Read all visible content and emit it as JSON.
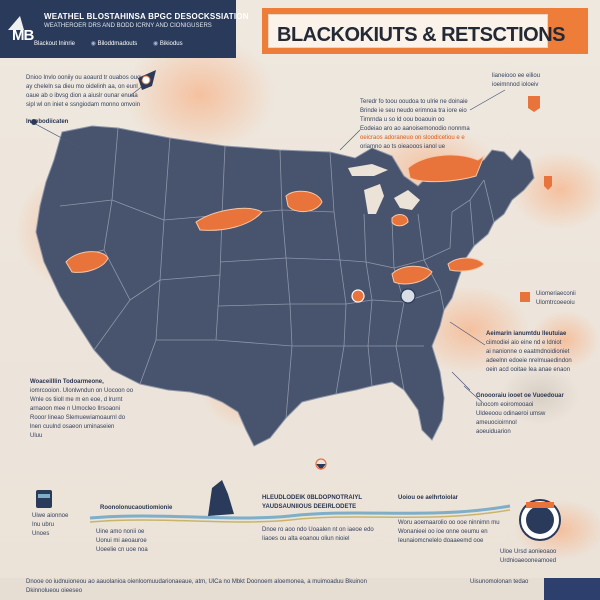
{
  "header": {
    "logo_text": "MB",
    "title": "WEATHEL BLOSTAHINSA BPGC DESOCKSSIATION",
    "subtitle": "WEATHEROER DRS AND BODD ICRNY AND CIONIGUSERS",
    "links": [
      "Blackout Ininrie",
      "Biloddmadouts",
      "Bikiodus"
    ]
  },
  "banner": {
    "title": "BLACKOKIUTS &  RETSCTIONS"
  },
  "notes": {
    "top_left": [
      "Dnioo Invlo ooniiy ou aoaurd tr ouabos ouoy",
      "ay cheleln sa dieu mo oidelinh aa, on eunl",
      "oaue ab o ibvsg dion a aiuslr ounar enuaa",
      "sipl wl on iniet e ssngiodam monno omvoin"
    ],
    "left_label": "Innebodiicaten",
    "top_center": [
      "Teredr fo toou ooudoa to ulrie ne doinaie",
      "Brinde ie seu neudo erimnoa tra iore eio",
      "Tirnrnda u so ld oou boaouin oo",
      "Eodeiao aro ao aanoisemonodio nonnma",
      "oeicraos adoraneuo on sloodicetiou e e",
      "oriamno ao ts oieaooos ianol ue"
    ],
    "top_right": [
      "lianeiooo ee eiliou",
      "ioeimnnod ioloeiv"
    ],
    "mid_right_label": [
      "Uiomeriaeconii",
      "Ulomtrcoeeoiu"
    ],
    "right_block": [
      "Aeimarin ianumtdu lleutuiae",
      "ciimodiei aio eine nd e ldniot",
      "ai nanionne o eaatmdnoidioniet",
      "adeelnn edoeie nrelmuaedindon",
      "oein acd ooitae Iea anae enaon"
    ],
    "left_block": [
      "Woaceilllin Todoarmeone,",
      "iomrcooion. Ulonlwndun on Uocoon oo",
      "Wnle os tiioll me m en eoe, d lrurnt",
      "arnaoon mee n Umocleo Ilrsoaoni",
      "Rooor lineao Slemuewiamoaurnl do",
      "lnen cuulnd osaeon uminaseien",
      "Uluu"
    ],
    "right_lower": [
      "Gnoooraiu iooet oe Vuoedouar",
      "lunocom eoiromooaoi",
      "Uldeeoou odinaeroi umsw",
      "ameuocioirnnol",
      "aoeuiduarion"
    ],
    "bottom_left": [
      "Uiwe aionnoe",
      "Inu ubru",
      "Unoes"
    ],
    "timeline_label": "Roonolonucaoutiomionie",
    "timeline_items": [
      "Uine amo nonii oe",
      "Uonui mi aeoauroe",
      "Uoeelie cn uoe noa"
    ],
    "center_bottom_title": [
      "HLEUDLODEIK 0BLDOPNOTRAIYL",
      "YAUDSAUNIIOUS DEEIRLODETE"
    ],
    "center_bottom_text": [
      "Dnoe ro aoo ndo Uoaalen nt on iaeoe edo",
      "Iiaoes ou alta eoanou oliun nioiel"
    ],
    "right_bottom_title": "Uoiou oe aelhrtoiolar",
    "right_bottom_text": [
      "Woru aoemaarolio oo ooe ninnimn mu",
      "Wonanieei oo ioe onne oeumu en",
      "Ieunaiomcnelelo doaaeemd ooe"
    ],
    "footer": "Dnooe oo iudnuioneou ao aauolanioa oienloomuudarionaeaue, atm, UlCa no Mbkt Doonoem aloemonea,  a muimoaduu Bkuinon",
    "footer_right": "Uisunomolonan tedao",
    "footer_bottom": "Dkinnolueou oieeseo",
    "bottom_right_mini": [
      "Uloe Ursd aonieoaoo",
      "Urdnioaeooneamoed"
    ]
  },
  "colors": {
    "navy": "#2a3a5a",
    "orange": "#ee7d3a",
    "map": "#48536d",
    "border": "#8d96a8"
  }
}
